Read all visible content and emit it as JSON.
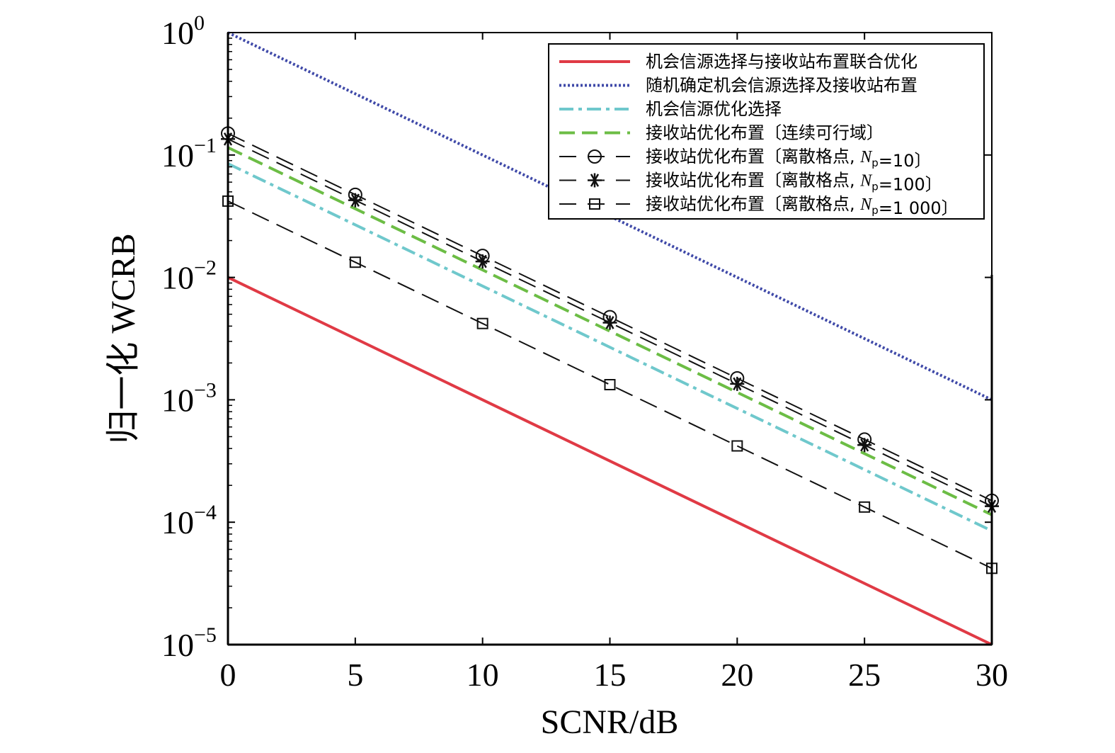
{
  "chart_data": {
    "type": "line",
    "xlabel": "SCNR/dB",
    "ylabel": "归一化 WCRB",
    "x_scale": "linear",
    "y_scale": "log",
    "xlim": [
      0,
      30
    ],
    "ylim": [
      1e-05,
      1
    ],
    "x_ticks": [
      0,
      5,
      10,
      15,
      20,
      25,
      30
    ],
    "y_ticks": [
      {
        "value": 1e-05,
        "base": "10",
        "exp": "−5"
      },
      {
        "value": 0.0001,
        "base": "10",
        "exp": "−4"
      },
      {
        "value": 0.001,
        "base": "10",
        "exp": "−3"
      },
      {
        "value": 0.01,
        "base": "10",
        "exp": "−2"
      },
      {
        "value": 0.1,
        "base": "10",
        "exp": "−1"
      },
      {
        "value": 1,
        "base": "10",
        "exp": "0"
      }
    ],
    "grid": false,
    "legend_position": "top-right",
    "series": [
      {
        "name": "机会信源选择与接收站布置联合优化",
        "legend_parts": [
          {
            "t": "机会信源选择与接收站布置联合优化"
          }
        ],
        "color": "#e03a45",
        "style": "solid",
        "marker": "none",
        "width": 4,
        "x": [
          0,
          30
        ],
        "y": [
          0.01,
          1e-05
        ]
      },
      {
        "name": "随机确定机会信源选择及接收站布置",
        "legend_parts": [
          {
            "t": "随机确定机会信源选择及接收站布置"
          }
        ],
        "color": "#3f49a8",
        "style": "dotted",
        "marker": "none",
        "width": 4,
        "x": [
          0,
          30
        ],
        "y": [
          1.0,
          0.001
        ]
      },
      {
        "name": "机会信源优化选择",
        "legend_parts": [
          {
            "t": "机会信源优化选择"
          }
        ],
        "color": "#6fc8cc",
        "style": "dashdot",
        "marker": "none",
        "width": 4,
        "x": [
          0,
          30
        ],
        "y": [
          0.085,
          8.5e-05
        ]
      },
      {
        "name": "接收站优化布置〔连续可行域〕",
        "legend_parts": [
          {
            "t": "接收站优化布置〔连续可行域〕"
          }
        ],
        "color": "#6cbd45",
        "style": "dashed",
        "marker": "none",
        "width": 4,
        "x": [
          0,
          30
        ],
        "y": [
          0.115,
          0.000115
        ]
      },
      {
        "name": "接收站优化布置〔离散格点, Np=10〕",
        "legend_parts": [
          {
            "t": "接收站优化布置〔离散格点, "
          },
          {
            "t": "N",
            "it": true
          },
          {
            "t": "p",
            "sub": true
          },
          {
            "t": "=10〕"
          }
        ],
        "color": "#111111",
        "style": "longdash",
        "marker": "circle",
        "width": 2,
        "x": [
          0,
          5,
          10,
          15,
          20,
          25,
          30
        ],
        "y": [
          0.15,
          0.0474,
          0.015,
          0.00474,
          0.0015,
          0.000474,
          0.00015
        ]
      },
      {
        "name": "接收站优化布置〔离散格点, Np=100〕",
        "legend_parts": [
          {
            "t": "接收站优化布置〔离散格点, "
          },
          {
            "t": "N",
            "it": true
          },
          {
            "t": "p",
            "sub": true
          },
          {
            "t": "=100〕"
          }
        ],
        "color": "#111111",
        "style": "longdash",
        "marker": "star",
        "width": 2,
        "x": [
          0,
          5,
          10,
          15,
          20,
          25,
          30
        ],
        "y": [
          0.135,
          0.0427,
          0.0135,
          0.00427,
          0.00135,
          0.000427,
          0.000135
        ]
      },
      {
        "name": "接收站优化布置〔离散格点, Np=1 000〕",
        "legend_parts": [
          {
            "t": "接收站优化布置〔离散格点, "
          },
          {
            "t": "N",
            "it": true
          },
          {
            "t": "p",
            "sub": true
          },
          {
            "t": "=1 000〕"
          }
        ],
        "color": "#111111",
        "style": "longdash",
        "marker": "square",
        "width": 2,
        "x": [
          0,
          5,
          10,
          15,
          20,
          25,
          30
        ],
        "y": [
          0.042,
          0.0133,
          0.0042,
          0.00133,
          0.00042,
          0.000133,
          4.2e-05
        ]
      }
    ]
  }
}
